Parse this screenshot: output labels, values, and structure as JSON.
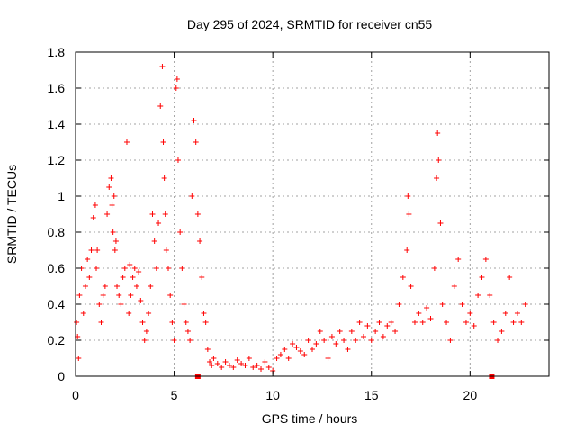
{
  "chart_data": {
    "type": "scatter",
    "title": "Day 295 of 2024, SRMTID for receiver cn55",
    "xlabel": "GPS time / hours",
    "ylabel": "SRMTID / TECUs",
    "xlim": [
      0,
      24
    ],
    "ylim": [
      0,
      1.8
    ],
    "x_ticks": [
      0,
      5,
      10,
      15,
      20
    ],
    "x_tick_labels": [
      "0",
      "5",
      "10",
      "15",
      "20"
    ],
    "y_ticks": [
      0,
      0.2,
      0.4,
      0.6,
      0.8,
      1.0,
      1.2,
      1.4,
      1.6,
      1.8
    ],
    "y_tick_labels": [
      "0",
      "0.2",
      "0.4",
      "0.6",
      "0.8",
      "1",
      "1.2",
      "1.4",
      "1.6",
      "1.8"
    ],
    "grid": true,
    "marker": "+",
    "color": "#ff0000",
    "series": [
      {
        "name": "SRMTID",
        "x": [
          0.05,
          0.1,
          0.15,
          0.2,
          0.3,
          0.4,
          0.5,
          0.6,
          0.7,
          0.8,
          0.9,
          1.0,
          1.05,
          1.1,
          1.2,
          1.3,
          1.4,
          1.5,
          1.6,
          1.7,
          1.8,
          1.85,
          1.9,
          1.95,
          2.0,
          2.05,
          2.1,
          2.2,
          2.3,
          2.4,
          2.5,
          2.6,
          2.7,
          2.75,
          2.8,
          2.9,
          3.0,
          3.1,
          3.2,
          3.3,
          3.4,
          3.5,
          3.6,
          3.7,
          3.8,
          3.9,
          4.0,
          4.1,
          4.2,
          4.3,
          4.4,
          4.45,
          4.5,
          4.55,
          4.6,
          4.7,
          4.8,
          4.9,
          5.0,
          5.1,
          5.15,
          5.2,
          5.3,
          5.4,
          5.5,
          5.6,
          5.7,
          5.8,
          5.9,
          6.0,
          6.1,
          6.2,
          6.3,
          6.4,
          6.5,
          6.6,
          6.7,
          6.8,
          6.9,
          7.0,
          7.2,
          7.4,
          7.6,
          7.8,
          8.0,
          8.2,
          8.4,
          8.6,
          8.8,
          9.0,
          9.2,
          9.4,
          9.6,
          9.8,
          10.0,
          10.2,
          10.4,
          10.6,
          10.8,
          11.0,
          11.2,
          11.4,
          11.6,
          11.8,
          12.0,
          12.2,
          12.4,
          12.6,
          12.8,
          13.0,
          13.2,
          13.4,
          13.6,
          13.8,
          14.0,
          14.2,
          14.4,
          14.6,
          14.8,
          15.0,
          15.2,
          15.4,
          15.6,
          15.8,
          16.0,
          16.2,
          16.4,
          16.6,
          16.8,
          16.85,
          16.9,
          17.0,
          17.2,
          17.4,
          17.6,
          17.8,
          18.0,
          18.2,
          18.3,
          18.35,
          18.4,
          18.5,
          18.6,
          18.8,
          19.0,
          19.2,
          19.4,
          19.6,
          19.8,
          20.0,
          20.2,
          20.4,
          20.6,
          20.8,
          21.0,
          21.2,
          21.4,
          21.6,
          21.8,
          22.0,
          22.2,
          22.4,
          22.6,
          22.8
        ],
        "y": [
          0.3,
          0.22,
          0.1,
          0.45,
          0.6,
          0.35,
          0.5,
          0.65,
          0.55,
          0.7,
          0.88,
          0.95,
          0.6,
          0.7,
          0.4,
          0.3,
          0.45,
          0.5,
          0.9,
          1.05,
          1.1,
          0.95,
          0.8,
          1.0,
          0.7,
          0.75,
          0.5,
          0.45,
          0.4,
          0.55,
          0.6,
          1.3,
          0.35,
          0.62,
          0.45,
          0.55,
          0.6,
          0.5,
          0.58,
          0.42,
          0.3,
          0.2,
          0.25,
          0.35,
          0.5,
          0.9,
          0.75,
          0.6,
          0.85,
          1.5,
          1.72,
          1.3,
          1.1,
          0.9,
          0.7,
          0.6,
          0.45,
          0.3,
          0.2,
          1.6,
          1.65,
          1.2,
          0.8,
          0.6,
          0.4,
          0.3,
          0.25,
          0.2,
          1.0,
          1.42,
          1.3,
          0.9,
          0.75,
          0.55,
          0.35,
          0.3,
          0.15,
          0.08,
          0.06,
          0.1,
          0.07,
          0.05,
          0.08,
          0.06,
          0.05,
          0.09,
          0.07,
          0.06,
          0.1,
          0.05,
          0.06,
          0.04,
          0.08,
          0.05,
          0.03,
          0.1,
          0.12,
          0.15,
          0.1,
          0.18,
          0.16,
          0.14,
          0.12,
          0.2,
          0.15,
          0.18,
          0.25,
          0.2,
          0.1,
          0.22,
          0.18,
          0.25,
          0.2,
          0.15,
          0.25,
          0.2,
          0.3,
          0.22,
          0.28,
          0.2,
          0.25,
          0.3,
          0.22,
          0.28,
          0.3,
          0.25,
          0.4,
          0.55,
          0.7,
          1.0,
          0.9,
          0.5,
          0.3,
          0.35,
          0.3,
          0.38,
          0.32,
          0.6,
          1.1,
          1.35,
          1.2,
          0.85,
          0.4,
          0.3,
          0.2,
          0.5,
          0.65,
          0.4,
          0.3,
          0.35,
          0.28,
          0.45,
          0.55,
          0.65,
          0.45,
          0.3,
          0.2,
          0.25,
          0.35,
          0.55,
          0.3,
          0.35,
          0.3,
          0.4
        ]
      }
    ],
    "square_markers_x": [
      6.2,
      21.1
    ],
    "square_markers_y": [
      0,
      0
    ]
  }
}
